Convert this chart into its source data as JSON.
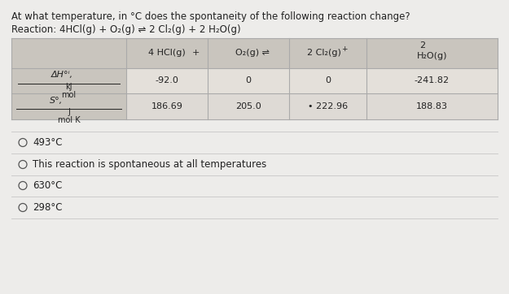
{
  "title_line1": "At what temperature, in °C does the spontaneity of the following reaction change?",
  "title_line2": "Reaction: 4HCl(g) + O₂(g) ⇌ 2 Cl₂(g) + 2 H₂O(g)",
  "dH_values": [
    "-92.0",
    "0",
    "0",
    "-241.82"
  ],
  "S_values": [
    "186.69",
    "205.0",
    "• 222.96",
    "188.83"
  ],
  "choices": [
    "493°C",
    "This reaction is spontaneous at all temperatures",
    "630°C",
    "298°C"
  ],
  "bg_color": "#edecea",
  "table_header_bg": "#c9c5be",
  "table_data_bg1": "#dedad5",
  "table_data_bg2": "#e4e0da",
  "border_color": "#aaaaaa",
  "text_color": "#222222",
  "choice_line_color": "#cccccc",
  "font_size_title": 8.5,
  "font_size_table": 8.0,
  "font_size_label": 7.0,
  "font_size_choice": 8.5
}
